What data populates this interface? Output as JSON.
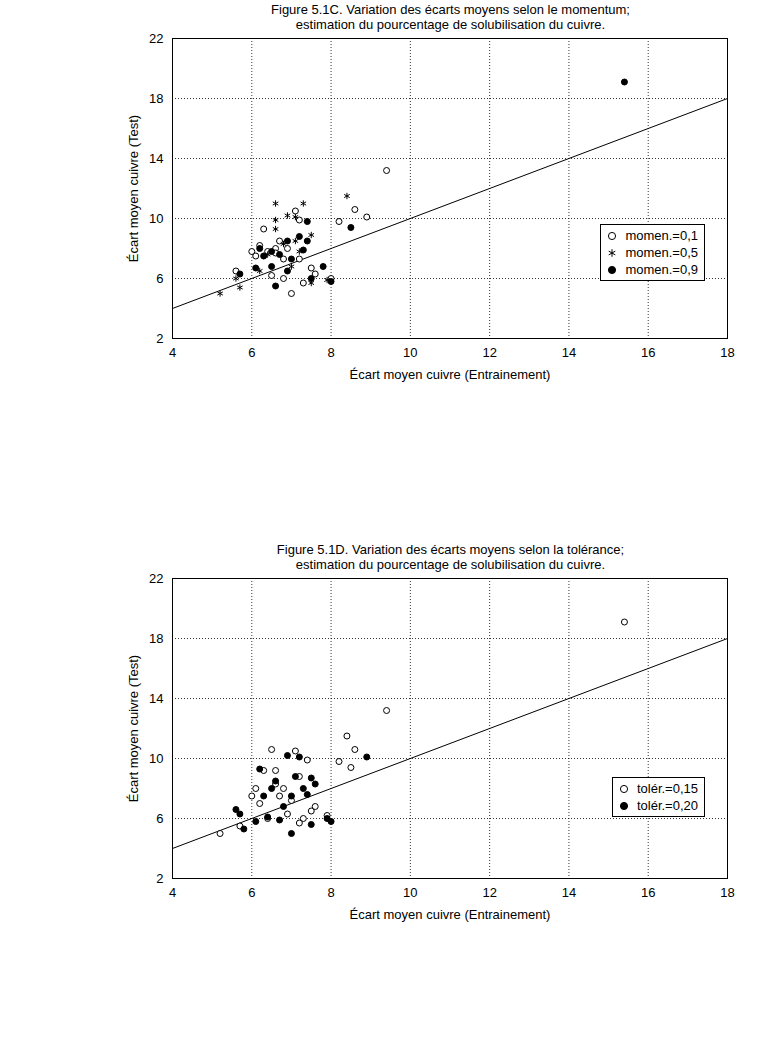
{
  "chart_data": [
    {
      "type": "scatter",
      "title": "Figure 5.1C. Variation des écarts moyens selon le momentum;",
      "subtitle": "estimation du pourcentage de solubilisation du cuivre.",
      "x_label": "Écart moyen cuivre (Entrainement)",
      "y_label": "Écart moyen cuivre (Test)",
      "xlim": [
        4,
        18
      ],
      "xticks": [
        4,
        6,
        8,
        10,
        12,
        14,
        16,
        18
      ],
      "ylim": [
        2,
        22
      ],
      "yticks": [
        2,
        6,
        10,
        14,
        18,
        22
      ],
      "grid": true,
      "legend": "right",
      "lines": [
        {
          "x": [
            4,
            18
          ],
          "y": [
            4,
            18
          ],
          "color": "#000000"
        }
      ],
      "series": [
        {
          "name": "momen.=0,1",
          "marker": "circle_open",
          "color": "#000000",
          "x": [
            5.6,
            6.1,
            6.2,
            6.3,
            6.4,
            6.5,
            6.6,
            6.7,
            6.8,
            6.9,
            7.0,
            7.1,
            7.2,
            7.3,
            7.5,
            7.6,
            8.0,
            8.2,
            8.6,
            8.9,
            9.4,
            6.8,
            7.2,
            6.6,
            6.0
          ],
          "values": [
            6.5,
            7.5,
            8.2,
            9.3,
            7.8,
            6.2,
            8.0,
            8.5,
            7.3,
            8.0,
            5.0,
            10.5,
            7.3,
            5.7,
            6.7,
            6.3,
            6.0,
            9.8,
            10.6,
            10.1,
            13.2,
            6.0,
            9.9,
            7.7,
            7.8
          ]
        },
        {
          "name": "momen.=0,5",
          "marker": "asterisk",
          "color": "#000000",
          "x": [
            5.2,
            5.7,
            5.6,
            6.2,
            6.4,
            6.6,
            6.6,
            6.6,
            6.9,
            7.1,
            7.1,
            7.3,
            7.5,
            7.5,
            7.2,
            8.4,
            7.9,
            6.8,
            6.3,
            7.0
          ],
          "values": [
            5.0,
            5.4,
            6.0,
            6.5,
            7.6,
            9.3,
            11.0,
            9.9,
            10.2,
            10.1,
            8.5,
            11.0,
            8.9,
            5.7,
            7.8,
            11.5,
            5.9,
            8.3,
            7.5,
            6.8
          ]
        },
        {
          "name": "momen.=0,9",
          "marker": "circle_filled",
          "color": "#000000",
          "x": [
            5.7,
            6.1,
            6.2,
            6.3,
            6.5,
            6.6,
            6.7,
            6.9,
            7.0,
            7.2,
            7.4,
            7.4,
            7.5,
            7.8,
            8.0,
            8.5,
            15.4,
            7.3,
            6.9,
            6.5
          ],
          "values": [
            6.3,
            6.7,
            8.0,
            7.5,
            6.8,
            5.5,
            7.6,
            6.5,
            7.3,
            8.8,
            9.8,
            8.5,
            6.0,
            6.8,
            5.8,
            9.4,
            19.1,
            7.9,
            8.5,
            7.8
          ]
        }
      ]
    },
    {
      "type": "scatter",
      "title": "Figure 5.1D. Variation des écarts moyens selon la tolérance;",
      "subtitle": "estimation du pourcentage de solubilisation du cuivre.",
      "x_label": "Écart moyen cuivre (Entrainement)",
      "y_label": "Écart moyen cuivre (Test)",
      "xlim": [
        4,
        18
      ],
      "xticks": [
        4,
        6,
        8,
        10,
        12,
        14,
        16,
        18
      ],
      "ylim": [
        2,
        22
      ],
      "yticks": [
        2,
        6,
        10,
        14,
        18,
        22
      ],
      "grid": true,
      "legend": "right",
      "lines": [
        {
          "x": [
            4,
            18
          ],
          "y": [
            4,
            18
          ],
          "color": "#000000"
        }
      ],
      "series": [
        {
          "name": "tolér.=0,15",
          "marker": "circle_open",
          "color": "#000000",
          "x": [
            5.2,
            6.0,
            6.1,
            6.3,
            6.5,
            6.6,
            6.7,
            6.8,
            7.0,
            7.1,
            7.2,
            7.3,
            7.5,
            7.6,
            7.9,
            8.2,
            8.4,
            8.5,
            8.6,
            9.4,
            15.4,
            6.4,
            6.9,
            7.4,
            6.2,
            5.7,
            7.2,
            6.6
          ],
          "values": [
            5.0,
            7.5,
            8.0,
            9.2,
            10.6,
            9.2,
            7.5,
            8.0,
            7.2,
            10.5,
            8.8,
            6.0,
            6.5,
            6.8,
            6.2,
            9.8,
            11.5,
            9.4,
            10.6,
            13.2,
            19.1,
            6.0,
            6.3,
            9.9,
            7.0,
            5.5,
            5.7,
            8.3
          ]
        },
        {
          "name": "tolér.=0,20",
          "marker": "circle_filled",
          "color": "#000000",
          "x": [
            5.6,
            5.7,
            5.8,
            6.1,
            6.2,
            6.3,
            6.5,
            6.6,
            6.7,
            6.9,
            7.0,
            7.1,
            7.2,
            7.3,
            7.4,
            7.5,
            7.6,
            7.5,
            8.0,
            7.9,
            8.9,
            7.0,
            6.8,
            6.4
          ],
          "values": [
            6.6,
            6.3,
            5.3,
            5.8,
            9.3,
            7.5,
            8.0,
            8.5,
            5.9,
            10.2,
            5.0,
            8.8,
            10.1,
            8.0,
            7.6,
            8.7,
            8.3,
            5.6,
            5.8,
            6.0,
            10.1,
            7.5,
            6.8,
            6.1
          ]
        }
      ]
    }
  ]
}
